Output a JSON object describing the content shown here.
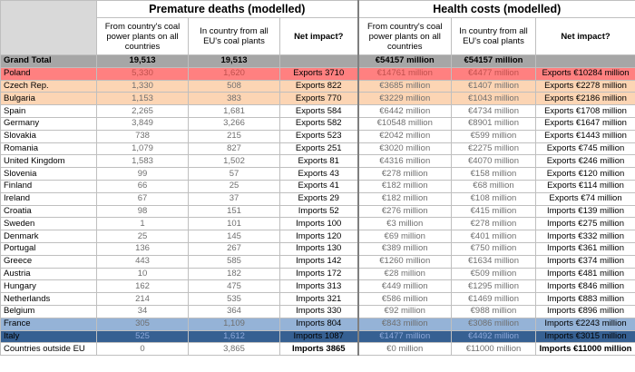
{
  "headers": {
    "premature_deaths": "Premature deaths (modelled)",
    "health_costs": "Health costs (modelled)",
    "col_from_country_deaths": "From country's coal power plants on all countries",
    "col_in_country_deaths": "In country from all EU's coal plants",
    "col_net_impact_deaths": "Net impact?",
    "col_from_country_costs": "From country's coal power plants on all countries",
    "col_in_country_costs": "In country from all EU's coal plants",
    "col_net_impact_costs": "Net impact?"
  },
  "total": {
    "label": "Grand Total",
    "deaths_from": "19,513",
    "deaths_in": "19,513",
    "deaths_net": "",
    "costs_from": "€54157 million",
    "costs_in": "€54157 million",
    "costs_net": ""
  },
  "rows": [
    {
      "country": "Poland",
      "deaths_from": "5,330",
      "deaths_in": "1,620",
      "deaths_net": "Exports 3710",
      "costs_from": "€14761 million",
      "costs_in": "€4477 million",
      "costs_net": "Exports €10284 million"
    },
    {
      "country": "Czech Rep.",
      "deaths_from": "1,330",
      "deaths_in": "508",
      "deaths_net": "Exports 822",
      "costs_from": "€3685 million",
      "costs_in": "€1407 million",
      "costs_net": "Exports €2278 million"
    },
    {
      "country": "Bulgaria",
      "deaths_from": "1,153",
      "deaths_in": "383",
      "deaths_net": "Exports 770",
      "costs_from": "€3229 million",
      "costs_in": "€1043 million",
      "costs_net": "Exports €2186 million"
    },
    {
      "country": "Spain",
      "deaths_from": "2,265",
      "deaths_in": "1,681",
      "deaths_net": "Exports 584",
      "costs_from": "€6442 million",
      "costs_in": "€4734 million",
      "costs_net": "Exports €1708 million"
    },
    {
      "country": "Germany",
      "deaths_from": "3,849",
      "deaths_in": "3,266",
      "deaths_net": "Exports 582",
      "costs_from": "€10548 million",
      "costs_in": "€8901 million",
      "costs_net": "Exports €1647 million"
    },
    {
      "country": "Slovakia",
      "deaths_from": "738",
      "deaths_in": "215",
      "deaths_net": "Exports 523",
      "costs_from": "€2042 million",
      "costs_in": "€599 million",
      "costs_net": "Exports €1443 million"
    },
    {
      "country": "Romania",
      "deaths_from": "1,079",
      "deaths_in": "827",
      "deaths_net": "Exports 251",
      "costs_from": "€3020 million",
      "costs_in": "€2275 million",
      "costs_net": "Exports €745 million"
    },
    {
      "country": "United Kingdom",
      "deaths_from": "1,583",
      "deaths_in": "1,502",
      "deaths_net": "Exports 81",
      "costs_from": "€4316 million",
      "costs_in": "€4070 million",
      "costs_net": "Exports €246 million"
    },
    {
      "country": "Slovenia",
      "deaths_from": "99",
      "deaths_in": "57",
      "deaths_net": "Exports 43",
      "costs_from": "€278 million",
      "costs_in": "€158 million",
      "costs_net": "Exports €120 million"
    },
    {
      "country": "Finland",
      "deaths_from": "66",
      "deaths_in": "25",
      "deaths_net": "Exports 41",
      "costs_from": "€182 million",
      "costs_in": "€68 million",
      "costs_net": "Exports €114 million"
    },
    {
      "country": "Ireland",
      "deaths_from": "67",
      "deaths_in": "37",
      "deaths_net": "Exports 29",
      "costs_from": "€182 million",
      "costs_in": "€108 million",
      "costs_net": "Exports €74 million"
    },
    {
      "country": "Croatia",
      "deaths_from": "98",
      "deaths_in": "151",
      "deaths_net": "Imports 52",
      "costs_from": "€276 million",
      "costs_in": "€415 million",
      "costs_net": "Imports €139 million"
    },
    {
      "country": "Sweden",
      "deaths_from": "1",
      "deaths_in": "101",
      "deaths_net": "Imports 100",
      "costs_from": "€3 million",
      "costs_in": "€278 million",
      "costs_net": "Imports €275 million"
    },
    {
      "country": "Denmark",
      "deaths_from": "25",
      "deaths_in": "145",
      "deaths_net": "Imports 120",
      "costs_from": "€69 million",
      "costs_in": "€401 million",
      "costs_net": "Imports €332 million"
    },
    {
      "country": "Portugal",
      "deaths_from": "136",
      "deaths_in": "267",
      "deaths_net": "Imports 130",
      "costs_from": "€389 million",
      "costs_in": "€750 million",
      "costs_net": "Imports €361 million"
    },
    {
      "country": "Greece",
      "deaths_from": "443",
      "deaths_in": "585",
      "deaths_net": "Imports 142",
      "costs_from": "€1260 million",
      "costs_in": "€1634 million",
      "costs_net": "Imports €374 million"
    },
    {
      "country": "Austria",
      "deaths_from": "10",
      "deaths_in": "182",
      "deaths_net": "Imports 172",
      "costs_from": "€28 million",
      "costs_in": "€509 million",
      "costs_net": "Imports €481 million"
    },
    {
      "country": "Hungary",
      "deaths_from": "162",
      "deaths_in": "475",
      "deaths_net": "Imports 313",
      "costs_from": "€449 million",
      "costs_in": "€1295 million",
      "costs_net": "Imports €846 million"
    },
    {
      "country": "Netherlands",
      "deaths_from": "214",
      "deaths_in": "535",
      "deaths_net": "Imports 321",
      "costs_from": "€586 million",
      "costs_in": "€1469 million",
      "costs_net": "Imports €883 million"
    },
    {
      "country": "Belgium",
      "deaths_from": "34",
      "deaths_in": "364",
      "deaths_net": "Imports 330",
      "costs_from": "€92 million",
      "costs_in": "€988 million",
      "costs_net": "Imports €896 million"
    },
    {
      "country": "France",
      "deaths_from": "305",
      "deaths_in": "1,109",
      "deaths_net": "Imports 804",
      "costs_from": "€843 million",
      "costs_in": "€3086 million",
      "costs_net": "Imports €2243 million"
    },
    {
      "country": "Italy",
      "deaths_from": "525",
      "deaths_in": "1,612",
      "deaths_net": "Imports 1087",
      "costs_from": "€1477 million",
      "costs_in": "€4492 million",
      "costs_net": "Imports €3015 million"
    },
    {
      "country": "Countries outside EU",
      "deaths_from": "0",
      "deaths_in": "3,865",
      "deaths_net": "Imports 3865",
      "costs_from": "€0 million",
      "costs_in": "€11000 million",
      "costs_net": "Imports €11000 million"
    }
  ],
  "colors": {
    "total": "#a6a6a6",
    "poland": "#ff8080",
    "exporters_high": "#fcd5b4",
    "france": "#95b3d7",
    "italy": "#366092"
  }
}
